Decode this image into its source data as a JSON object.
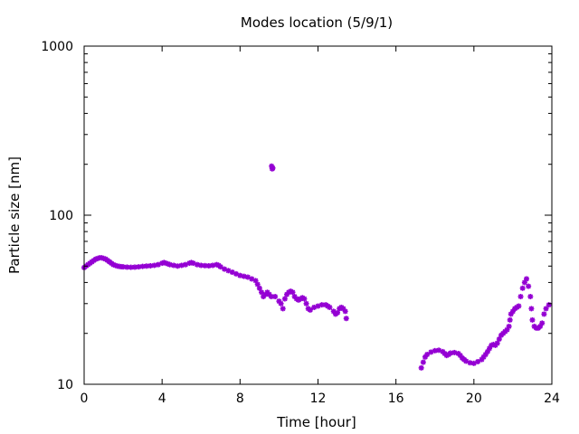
{
  "chart_data": {
    "type": "scatter",
    "title": "Modes location (5/9/1)",
    "xlabel": "Time [hour]",
    "ylabel": "Particle size [nm]",
    "xlim": [
      0,
      24
    ],
    "ylim": [
      10,
      1000
    ],
    "yscale": "log",
    "x_ticks": [
      0,
      4,
      8,
      12,
      16,
      20,
      24
    ],
    "x_tick_labels": [
      "0",
      "4",
      "8",
      "12",
      "16",
      "20",
      "24"
    ],
    "y_ticks": [
      10,
      100,
      1000
    ],
    "y_tick_labels": [
      "10",
      "100",
      "1000"
    ],
    "grid": false,
    "legend": "none",
    "marker_color": "#9400D3",
    "series": [
      {
        "name": "modes",
        "points": [
          [
            0.0,
            49
          ],
          [
            0.1,
            50
          ],
          [
            0.2,
            51
          ],
          [
            0.3,
            52
          ],
          [
            0.4,
            53
          ],
          [
            0.5,
            54
          ],
          [
            0.6,
            55
          ],
          [
            0.7,
            55.5
          ],
          [
            0.8,
            56
          ],
          [
            0.9,
            56
          ],
          [
            1.0,
            55.5
          ],
          [
            1.1,
            55
          ],
          [
            1.2,
            54
          ],
          [
            1.3,
            53
          ],
          [
            1.4,
            52
          ],
          [
            1.5,
            51
          ],
          [
            1.6,
            50.5
          ],
          [
            1.7,
            50
          ],
          [
            1.8,
            49.8
          ],
          [
            1.9,
            49.6
          ],
          [
            2.0,
            49.5
          ],
          [
            2.2,
            49.3
          ],
          [
            2.4,
            49.2
          ],
          [
            2.6,
            49.3
          ],
          [
            2.8,
            49.5
          ],
          [
            3.0,
            49.8
          ],
          [
            3.2,
            50
          ],
          [
            3.4,
            50.2
          ],
          [
            3.6,
            50.5
          ],
          [
            3.8,
            51
          ],
          [
            4.0,
            52
          ],
          [
            4.1,
            52.5
          ],
          [
            4.2,
            52
          ],
          [
            4.3,
            51.5
          ],
          [
            4.4,
            51
          ],
          [
            4.6,
            50.5
          ],
          [
            4.8,
            50
          ],
          [
            5.0,
            50.5
          ],
          [
            5.2,
            51
          ],
          [
            5.4,
            52
          ],
          [
            5.5,
            52.5
          ],
          [
            5.6,
            52
          ],
          [
            5.8,
            51
          ],
          [
            6.0,
            50.5
          ],
          [
            6.2,
            50.3
          ],
          [
            6.4,
            50.2
          ],
          [
            6.6,
            50.5
          ],
          [
            6.8,
            51
          ],
          [
            6.9,
            50.5
          ],
          [
            7.0,
            49.5
          ],
          [
            7.2,
            48
          ],
          [
            7.4,
            47
          ],
          [
            7.6,
            46
          ],
          [
            7.8,
            45
          ],
          [
            8.0,
            44
          ],
          [
            8.2,
            43.5
          ],
          [
            8.4,
            43
          ],
          [
            8.6,
            42
          ],
          [
            8.8,
            41
          ],
          [
            8.9,
            39
          ],
          [
            9.0,
            37
          ],
          [
            9.1,
            35
          ],
          [
            9.2,
            33
          ],
          [
            9.3,
            34
          ],
          [
            9.4,
            35
          ],
          [
            9.5,
            34
          ],
          [
            9.6,
            33
          ],
          [
            9.62,
            195
          ],
          [
            9.65,
            188
          ],
          [
            9.68,
            190
          ],
          [
            9.8,
            33
          ],
          [
            10.0,
            31
          ],
          [
            10.1,
            30
          ],
          [
            10.2,
            28
          ],
          [
            10.3,
            32
          ],
          [
            10.4,
            34
          ],
          [
            10.5,
            35
          ],
          [
            10.6,
            35.5
          ],
          [
            10.7,
            35
          ],
          [
            10.8,
            33
          ],
          [
            10.9,
            32
          ],
          [
            11.0,
            31.5
          ],
          [
            11.1,
            32
          ],
          [
            11.2,
            32.5
          ],
          [
            11.3,
            32
          ],
          [
            11.4,
            30
          ],
          [
            11.5,
            28
          ],
          [
            11.6,
            27.5
          ],
          [
            11.8,
            28.5
          ],
          [
            12.0,
            29
          ],
          [
            12.2,
            29.5
          ],
          [
            12.4,
            29.5
          ],
          [
            12.5,
            29
          ],
          [
            12.6,
            28.5
          ],
          [
            12.8,
            27
          ],
          [
            12.9,
            26
          ],
          [
            13.0,
            26.5
          ],
          [
            13.1,
            28
          ],
          [
            13.2,
            28.5
          ],
          [
            13.3,
            28
          ],
          [
            13.4,
            27
          ],
          [
            13.45,
            24.5
          ],
          [
            17.3,
            12.5
          ],
          [
            17.4,
            13.5
          ],
          [
            17.5,
            14.5
          ],
          [
            17.6,
            15
          ],
          [
            17.8,
            15.5
          ],
          [
            18.0,
            15.8
          ],
          [
            18.2,
            15.9
          ],
          [
            18.4,
            15.6
          ],
          [
            18.5,
            15.2
          ],
          [
            18.6,
            14.8
          ],
          [
            18.7,
            15
          ],
          [
            18.8,
            15.3
          ],
          [
            19.0,
            15.4
          ],
          [
            19.2,
            15.2
          ],
          [
            19.3,
            14.8
          ],
          [
            19.4,
            14.3
          ],
          [
            19.5,
            14
          ],
          [
            19.6,
            13.7
          ],
          [
            19.8,
            13.4
          ],
          [
            20.0,
            13.3
          ],
          [
            20.2,
            13.6
          ],
          [
            20.4,
            14
          ],
          [
            20.5,
            14.5
          ],
          [
            20.6,
            15
          ],
          [
            20.7,
            15.6
          ],
          [
            20.8,
            16.3
          ],
          [
            20.9,
            17
          ],
          [
            21.0,
            17.2
          ],
          [
            21.1,
            17
          ],
          [
            21.2,
            17.5
          ],
          [
            21.3,
            18.5
          ],
          [
            21.4,
            19.5
          ],
          [
            21.5,
            20
          ],
          [
            21.6,
            20.5
          ],
          [
            21.7,
            21
          ],
          [
            21.8,
            22
          ],
          [
            21.85,
            24
          ],
          [
            21.9,
            26
          ],
          [
            22.0,
            27
          ],
          [
            22.1,
            28
          ],
          [
            22.2,
            28.5
          ],
          [
            22.3,
            29
          ],
          [
            22.4,
            33
          ],
          [
            22.5,
            37
          ],
          [
            22.6,
            40
          ],
          [
            22.7,
            42
          ],
          [
            22.8,
            38
          ],
          [
            22.9,
            33
          ],
          [
            22.95,
            28
          ],
          [
            23.0,
            24
          ],
          [
            23.1,
            22
          ],
          [
            23.2,
            21.5
          ],
          [
            23.3,
            21.5
          ],
          [
            23.4,
            22
          ],
          [
            23.5,
            23
          ],
          [
            23.6,
            26
          ],
          [
            23.7,
            28
          ],
          [
            23.85,
            29.5
          ]
        ]
      }
    ]
  }
}
